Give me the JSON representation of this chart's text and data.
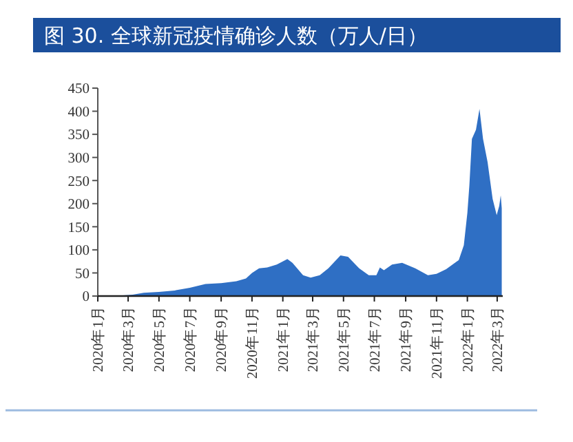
{
  "chart_data": {
    "type": "area",
    "title": "图 30. 全球新冠疫情确诊人数（万人/日）",
    "x": [
      "2020-01-01",
      "2020-02-15",
      "2020-03-10",
      "2020-04-01",
      "2020-05-01",
      "2020-06-01",
      "2020-07-01",
      "2020-08-01",
      "2020-09-01",
      "2020-10-01",
      "2020-10-20",
      "2020-11-01",
      "2020-11-15",
      "2020-12-01",
      "2020-12-20",
      "2021-01-10",
      "2021-01-20",
      "2021-02-10",
      "2021-02-25",
      "2021-03-15",
      "2021-04-01",
      "2021-04-25",
      "2021-05-10",
      "2021-06-01",
      "2021-06-20",
      "2021-07-05",
      "2021-07-12",
      "2021-07-20",
      "2021-08-05",
      "2021-08-25",
      "2021-09-20",
      "2021-10-15",
      "2021-11-01",
      "2021-11-20",
      "2021-12-05",
      "2021-12-15",
      "2021-12-25",
      "2022-01-01",
      "2022-01-05",
      "2022-01-10",
      "2022-01-18",
      "2022-01-25",
      "2022-02-01",
      "2022-02-10",
      "2022-02-20",
      "2022-02-28",
      "2022-03-05",
      "2022-03-08",
      "2022-03-10"
    ],
    "series": [
      {
        "color": "#2f6fc4",
        "values": [
          0,
          1,
          3,
          7,
          9,
          12,
          18,
          26,
          28,
          32,
          38,
          50,
          60,
          62,
          68,
          80,
          72,
          45,
          40,
          45,
          60,
          88,
          85,
          60,
          45,
          45,
          62,
          56,
          68,
          72,
          60,
          45,
          48,
          58,
          70,
          78,
          110,
          180,
          240,
          340,
          360,
          405,
          340,
          290,
          210,
          175,
          195,
          218,
          190
        ]
      }
    ],
    "xlim": [
      "2020-01-01",
      "2022-03-12"
    ],
    "xticks": [
      {
        "value": "2020-01",
        "label": "2020年1月"
      },
      {
        "value": "2020-03",
        "label": "2020年3月"
      },
      {
        "value": "2020-05",
        "label": "2020年5月"
      },
      {
        "value": "2020-07",
        "label": "2020年7月"
      },
      {
        "value": "2020-09",
        "label": "2020年9月"
      },
      {
        "value": "2020-11",
        "label": "2020年11月"
      },
      {
        "value": "2021-01",
        "label": "2021年1月"
      },
      {
        "value": "2021-03",
        "label": "2021年3月"
      },
      {
        "value": "2021-05",
        "label": "2021年5月"
      },
      {
        "value": "2021-07",
        "label": "2021年7月"
      },
      {
        "value": "2021-09",
        "label": "2021年9月"
      },
      {
        "value": "2021-11",
        "label": "2021年11月"
      },
      {
        "value": "2022-01",
        "label": "2022年1月"
      },
      {
        "value": "2022-03",
        "label": "2022年3月"
      }
    ],
    "ylim": [
      0,
      450
    ],
    "yticks": [
      0,
      50,
      100,
      150,
      200,
      250,
      300,
      350,
      400,
      450
    ],
    "grid": false
  }
}
